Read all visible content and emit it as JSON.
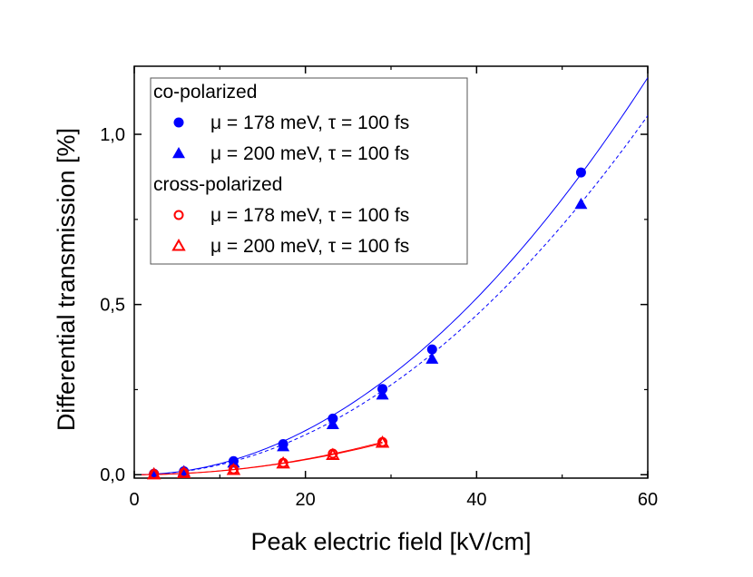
{
  "chart_data": {
    "type": "scatter",
    "xlabel": "Peak electric field [kV/cm]",
    "ylabel": "Differential transmission [%]",
    "xlim": [
      0,
      60
    ],
    "ylim": [
      -0.01,
      1.2
    ],
    "x_ticks": [
      0,
      20,
      40,
      60
    ],
    "x_tick_labels": [
      "0",
      "20",
      "40",
      "60"
    ],
    "y_ticks": [
      0,
      0.5,
      1.0
    ],
    "y_tick_labels": [
      "0,0",
      "0,5",
      "1,0"
    ],
    "grid": false,
    "legend_placement": "top-left",
    "legend_groups": [
      {
        "title": "co-polarized",
        "entries": [
          {
            "label": "μ = 178 meV, τ = 100 fs",
            "marker": "circle-filled",
            "color": "#0000ff"
          },
          {
            "label": "μ = 200 meV, τ = 100 fs",
            "marker": "triangle-filled",
            "color": "#0000ff"
          }
        ]
      },
      {
        "title": "cross-polarized",
        "entries": [
          {
            "label": "μ = 178 meV, τ =  100 fs",
            "marker": "circle-open",
            "color": "#ff0000"
          },
          {
            "label": "μ = 200 meV, τ =  100 fs",
            "marker": "triangle-open",
            "color": "#ff0000"
          }
        ]
      }
    ],
    "series": [
      {
        "marker": "circle-filled",
        "color": "#0000ff",
        "x": [
          2.3,
          5.8,
          11.6,
          17.4,
          23.2,
          29.0,
          34.8,
          52.2
        ],
        "y": [
          0.003,
          0.01,
          0.04,
          0.09,
          0.165,
          0.252,
          0.368,
          0.888
        ]
      },
      {
        "marker": "triangle-filled",
        "color": "#0000ff",
        "x": [
          2.3,
          5.8,
          11.6,
          17.4,
          23.2,
          29.0,
          34.8,
          52.2
        ],
        "y": [
          0.003,
          0.01,
          0.035,
          0.083,
          0.148,
          0.235,
          0.34,
          0.795
        ]
      },
      {
        "marker": "circle-open",
        "color": "#ff0000",
        "x": [
          2.3,
          5.8,
          11.6,
          17.4,
          23.2,
          29.0
        ],
        "y": [
          0.002,
          0.006,
          0.016,
          0.035,
          0.062,
          0.096
        ]
      },
      {
        "marker": "triangle-open",
        "color": "#ff0000",
        "x": [
          2.3,
          5.8,
          11.6,
          17.4,
          23.2,
          29.0
        ],
        "y": [
          0.001,
          0.005,
          0.014,
          0.033,
          0.058,
          0.094
        ]
      }
    ],
    "fit_curves": [
      {
        "style": "solid",
        "color": "#0000ff",
        "coef": 0.000324,
        "x_range": [
          0,
          60
        ]
      },
      {
        "style": "dashed",
        "color": "#0000ff",
        "coef": 0.000293,
        "x_range": [
          0,
          60
        ]
      },
      {
        "style": "solid",
        "color": "#ff0000",
        "coef": 0.000114,
        "x_range": [
          0,
          29
        ]
      },
      {
        "style": "solid",
        "color": "#ff0000",
        "coef": 0.00011,
        "x_range": [
          0,
          29
        ]
      }
    ]
  }
}
